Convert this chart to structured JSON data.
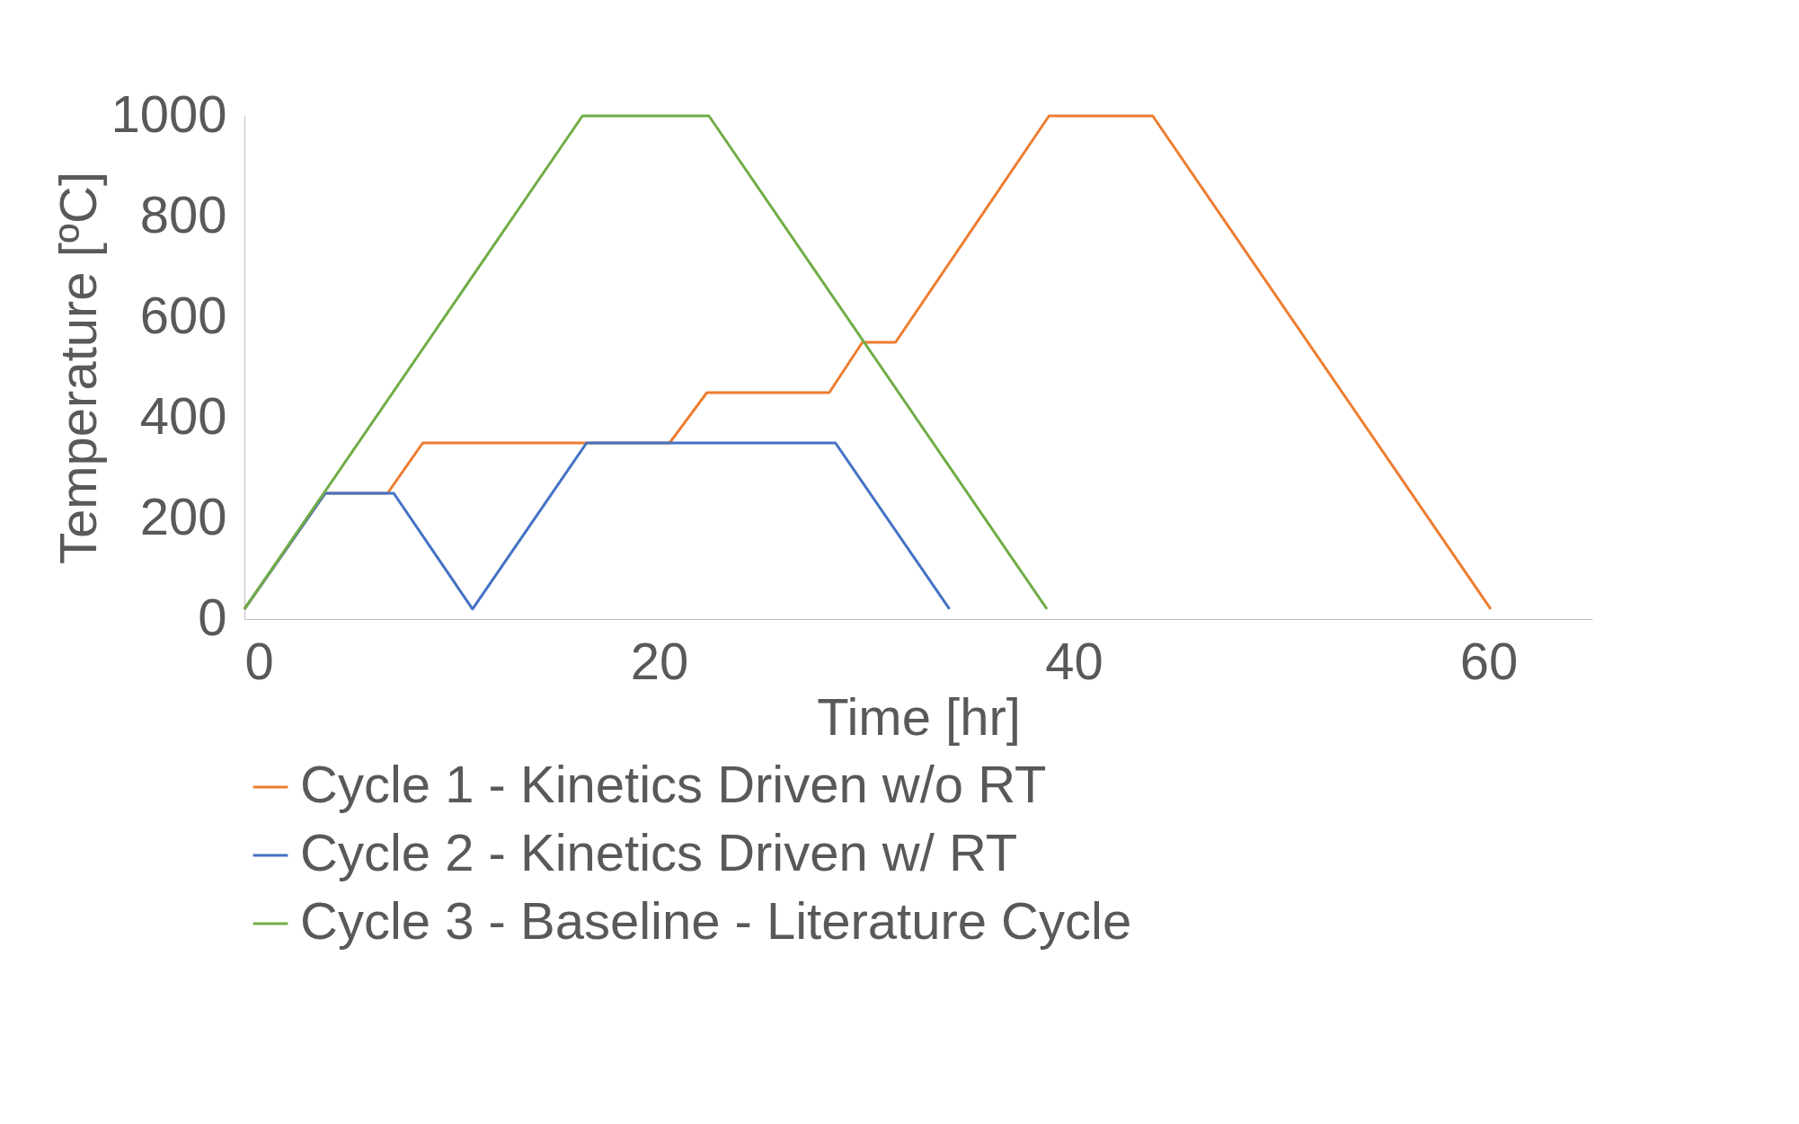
{
  "chart_data": {
    "type": "line",
    "xlabel": "Time [hr]",
    "ylabel": "Temperature [ºC]",
    "xlim": [
      0,
      65
    ],
    "xticks": [
      0,
      20,
      40,
      60
    ],
    "ylim": [
      0,
      1000
    ],
    "yticks": [
      0,
      200,
      400,
      600,
      800,
      1000
    ],
    "grid": false,
    "legend": "bottom",
    "marker": "none",
    "line_style": "solid",
    "series": [
      {
        "name": "Cycle 1 - Kinetics Driven w/o RT",
        "color": "#ed7d31",
        "x": [
          0,
          3.9,
          6.9,
          8.6,
          20.5,
          22.3,
          28.2,
          29.8,
          31.4,
          38.8,
          43.8,
          60.1
        ],
        "values": [
          20,
          250,
          250,
          350,
          350,
          450,
          450,
          550,
          550,
          1000,
          1000,
          20
        ]
      },
      {
        "name": "Cycle 2 - Kinetics Driven w/ RT",
        "color": "#4472c4",
        "x": [
          0,
          3.9,
          7.2,
          11.0,
          16.5,
          28.5,
          34.0
        ],
        "values": [
          20,
          250,
          250,
          20,
          350,
          350,
          20
        ]
      },
      {
        "name": "Cycle 3 - Baseline - Literature Cycle",
        "color": "#70ad47",
        "x": [
          0,
          16.3,
          22.4,
          38.7
        ],
        "values": [
          20,
          1000,
          1000,
          20
        ]
      }
    ]
  }
}
